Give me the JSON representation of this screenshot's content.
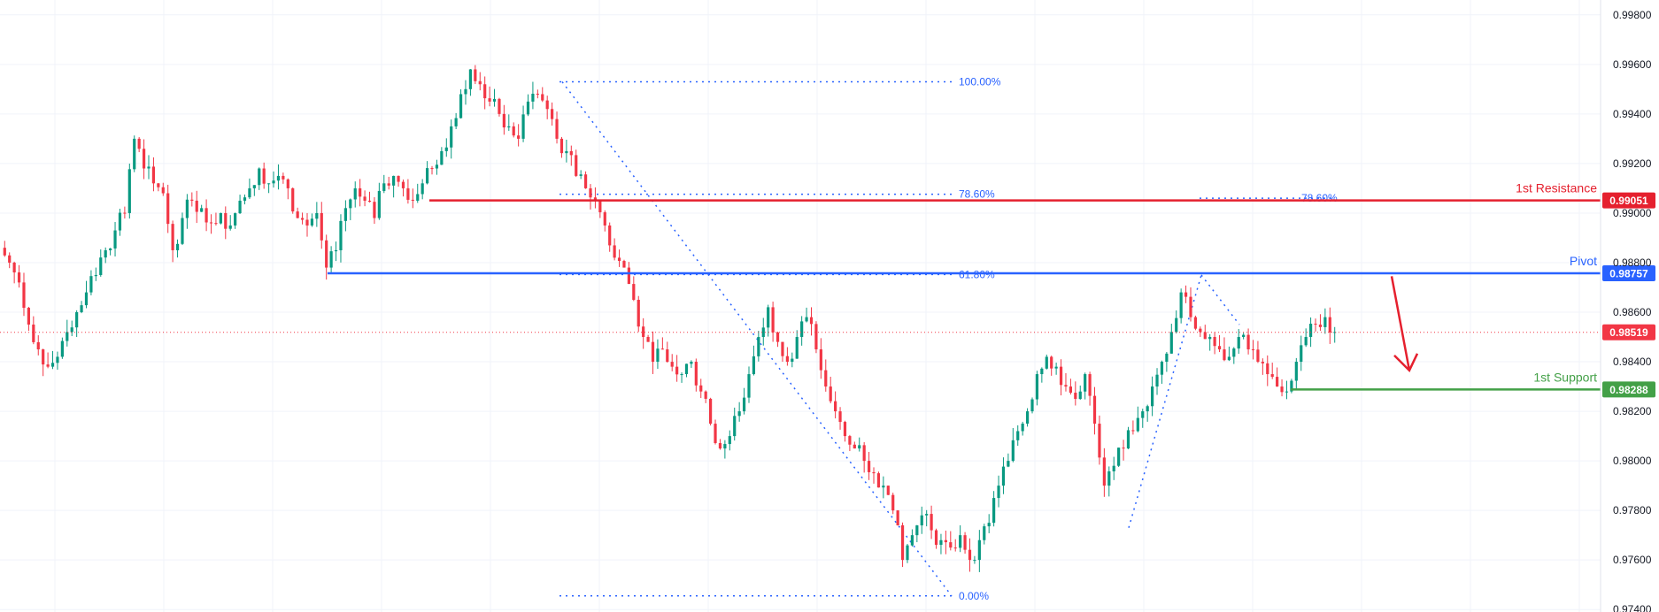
{
  "chart_data": {
    "type": "candlestick",
    "instrument_note": "",
    "ylim": [
      0.9739,
      0.9986
    ],
    "y_ticks": [
      "0.99800",
      "0.99600",
      "0.99400",
      "0.99200",
      "0.99000",
      "0.98800",
      "0.98600",
      "0.98400",
      "0.98200",
      "0.98000",
      "0.97800",
      "0.97600",
      "0.97400"
    ],
    "y_tick_values": [
      0.998,
      0.996,
      0.994,
      0.992,
      0.99,
      0.988,
      0.986,
      0.984,
      0.982,
      0.98,
      0.978,
      0.976,
      0.974
    ],
    "grid": true,
    "candles_close_path": [
      0.988,
      0.9872,
      0.9855,
      0.9845,
      0.9838,
      0.9842,
      0.9852,
      0.986,
      0.9868,
      0.9875,
      0.9885,
      0.9893,
      0.99,
      0.993,
      0.9918,
      0.9912,
      0.9908,
      0.9885,
      0.9898,
      0.9905,
      0.9902,
      0.9896,
      0.99,
      0.9895,
      0.9905,
      0.991,
      0.9918,
      0.9912,
      0.9915,
      0.991,
      0.9898,
      0.9895,
      0.99,
      0.9878,
      0.9885,
      0.9902,
      0.991,
      0.9905,
      0.9898,
      0.9912,
      0.9915,
      0.991,
      0.9905,
      0.9912,
      0.9918,
      0.9925,
      0.9935,
      0.9948,
      0.9958,
      0.9952,
      0.9945,
      0.994,
      0.9935,
      0.993,
      0.9945,
      0.9948,
      0.9942,
      0.993,
      0.9925,
      0.9915,
      0.991,
      0.9905,
      0.9895,
      0.9882,
      0.9878,
      0.9865,
      0.985,
      0.984,
      0.9845,
      0.9838,
      0.9835,
      0.984,
      0.9828,
      0.9815,
      0.9805,
      0.981,
      0.982,
      0.9835,
      0.985,
      0.9862,
      0.9848,
      0.984,
      0.985,
      0.9858,
      0.9845,
      0.983,
      0.982,
      0.981,
      0.9805,
      0.98,
      0.9795,
      0.979,
      0.978,
      0.976,
      0.977,
      0.9778,
      0.9772,
      0.9768,
      0.9765,
      0.977,
      0.976,
      0.9768,
      0.9775,
      0.979,
      0.98,
      0.9812,
      0.982,
      0.9835,
      0.9842,
      0.9838,
      0.983,
      0.9825,
      0.9835,
      0.9815,
      0.979,
      0.9798,
      0.9805,
      0.9812,
      0.982,
      0.983,
      0.984,
      0.9852,
      0.9868,
      0.9858,
      0.9852,
      0.985,
      0.9845,
      0.9842,
      0.985,
      0.9845,
      0.984,
      0.9835,
      0.983,
      0.9828,
      0.984,
      0.985,
      0.9855,
      0.9858,
      0.9852
    ],
    "fibonacci": [
      {
        "label": "100.00%",
        "price": 0.9953
      },
      {
        "label": "78.60%",
        "price": 0.99076
      },
      {
        "label": "61.80%",
        "price": 0.98752
      },
      {
        "label": "0.00%",
        "price": 0.97455
      }
    ],
    "fib_label_right": "78.60%",
    "levels": [
      {
        "name": "1st Resistance",
        "value": "0.99051",
        "price": 0.99051,
        "color": "#e5202e"
      },
      {
        "name": "Pivot",
        "value": "0.98757",
        "price": 0.98757,
        "color": "#2962ff"
      },
      {
        "name": "1st Support",
        "value": "0.98288",
        "price": 0.98288,
        "color": "#43a047"
      }
    ],
    "current_price": {
      "value": "0.98519",
      "price": 0.98519,
      "color": "#f23645"
    },
    "colors": {
      "up": "#089981",
      "down": "#f23645",
      "fib": "#2962ff",
      "arrow": "#e5202e",
      "grid": "#f0f3fa"
    }
  }
}
